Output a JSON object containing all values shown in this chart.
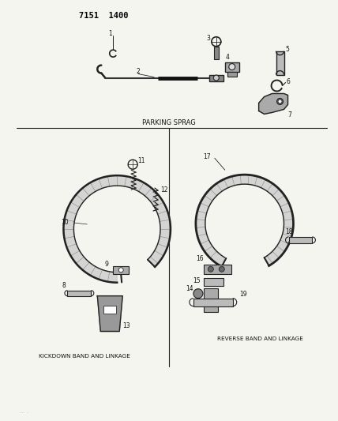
{
  "title": "7151  1400",
  "background_color": "#f5f5f0",
  "fig_width": 4.28,
  "fig_height": 5.33,
  "dpi": 100,
  "parking_sprag_label": "PARKING SPRAG",
  "kickdown_label": "KICKDOWN BAND AND LINKAGE",
  "reverse_label": "REVERSE BAND AND LINKAGE"
}
